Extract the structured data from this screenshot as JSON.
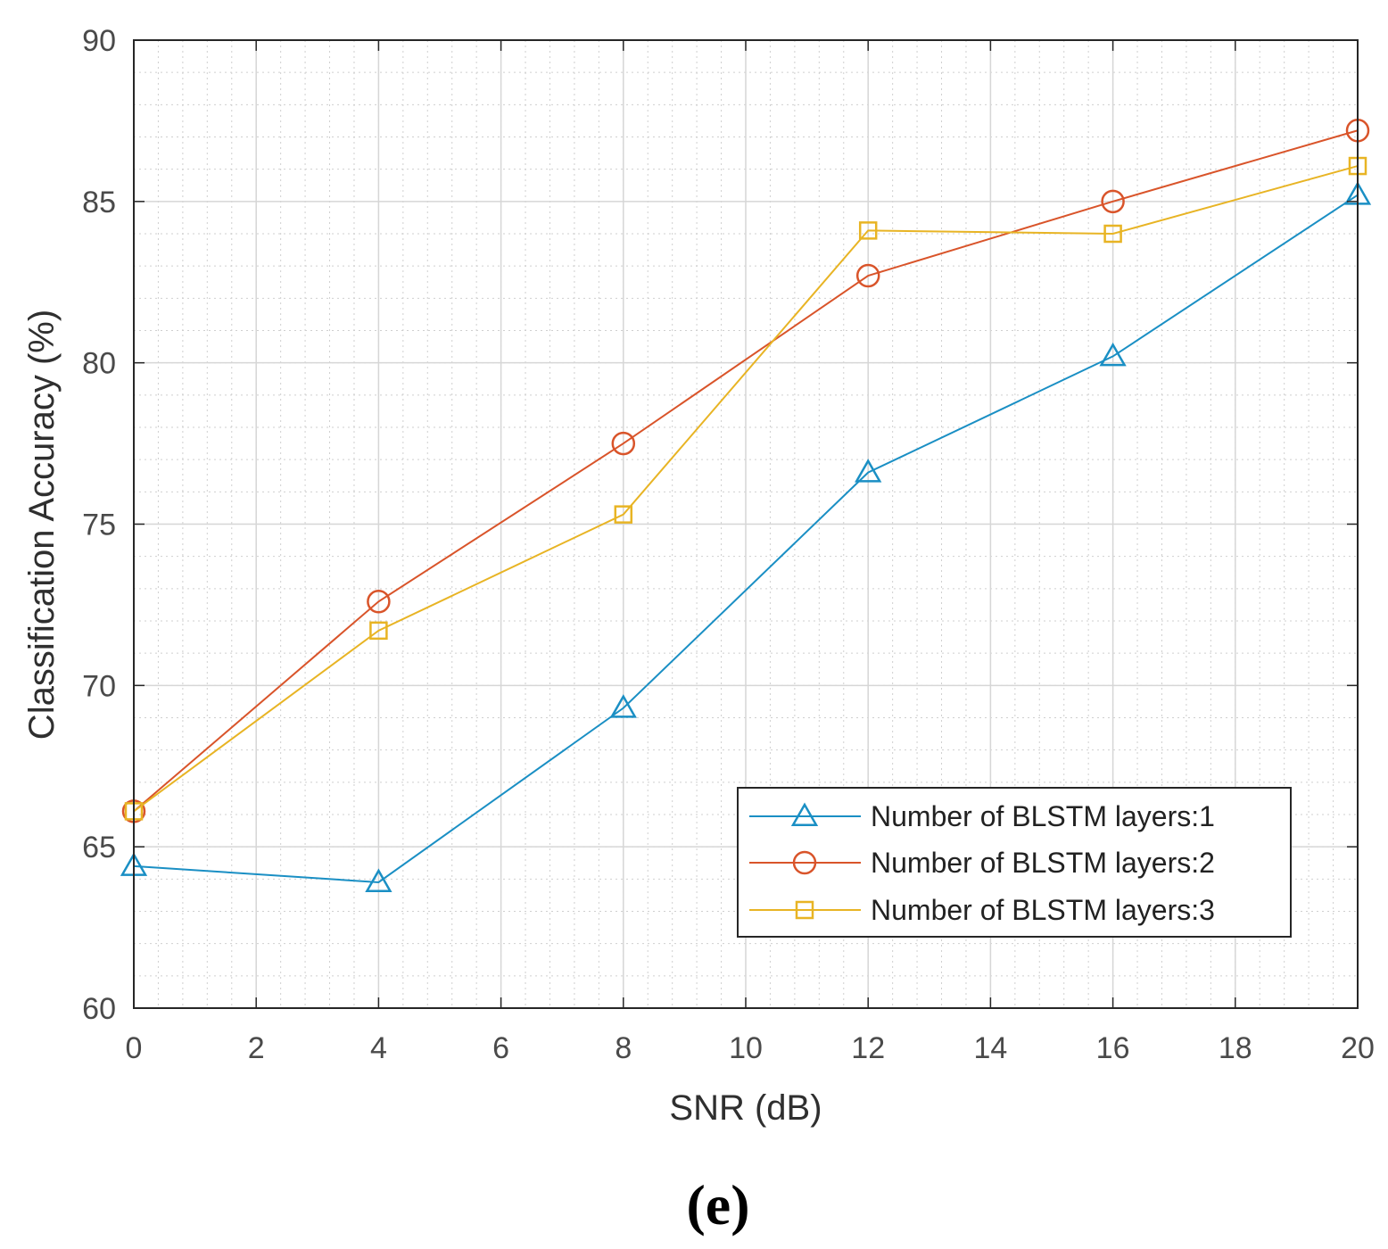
{
  "chart_data": {
    "type": "line",
    "title": "",
    "xlabel": "SNR (dB)",
    "ylabel": "Classification Accuracy (%)",
    "xlim": [
      0,
      20
    ],
    "ylim": [
      60,
      90
    ],
    "xticks": [
      0,
      2,
      4,
      6,
      8,
      10,
      12,
      14,
      16,
      18,
      20
    ],
    "yticks": [
      60,
      65,
      70,
      75,
      80,
      85,
      90
    ],
    "grid": true,
    "minor_grid": true,
    "legend_position": "bottom-right",
    "x": [
      0,
      4,
      8,
      12,
      16,
      20
    ],
    "series": [
      {
        "name": "Number of BLSTM layers:1",
        "marker": "triangle",
        "color": "#1a8fc4",
        "values": [
          64.4,
          63.9,
          69.3,
          76.6,
          80.2,
          85.2
        ]
      },
      {
        "name": "Number of BLSTM layers:2",
        "marker": "circle",
        "color": "#d9542a",
        "values": [
          66.1,
          72.6,
          77.5,
          82.7,
          85.0,
          87.2
        ]
      },
      {
        "name": "Number of BLSTM layers:3",
        "marker": "square",
        "color": "#e8b424",
        "values": [
          66.1,
          71.7,
          75.3,
          84.1,
          84.0,
          86.1
        ]
      }
    ]
  },
  "panel_label": "(e)"
}
